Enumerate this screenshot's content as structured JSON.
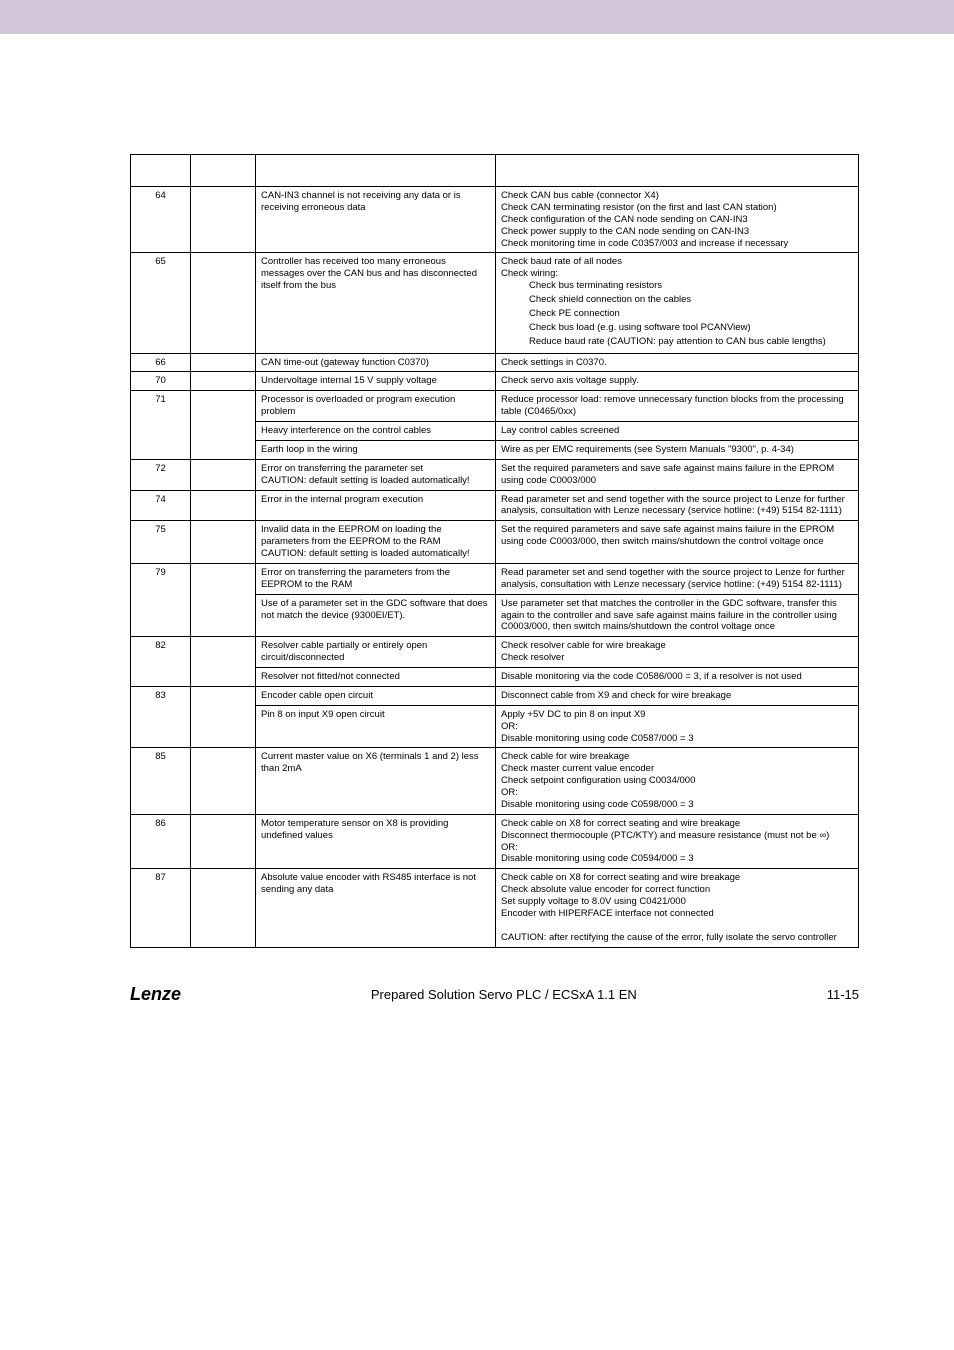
{
  "footer": {
    "brand": "Lenze",
    "center": "Prepared Solution Servo PLC / ECSxA 1.1 EN",
    "pageno": "11-15"
  },
  "rows": [
    {
      "no": "64",
      "cells": [
        {
          "cause": "CAN-IN3 channel is not receiving any data or is receiving erroneous data",
          "remedy": "Check CAN bus cable (connector X4)\nCheck CAN terminating resistor (on the first and last CAN station)\nCheck configuration of the CAN node sending on CAN-IN3\nCheck power supply to the CAN node sending on CAN-IN3\nCheck monitoring time in code C0357/003 and increase if necessary"
        }
      ]
    },
    {
      "no": "65",
      "cells": [
        {
          "cause": "Controller has received too many erroneous messages over the CAN bus and has disconnected itself from the bus",
          "remedy_pre": "Check baud rate of all nodes\nCheck wiring:",
          "remedy_list": [
            "Check bus terminating resistors",
            "Check shield connection on the cables",
            "Check PE connection",
            "Check bus load (e.g. using software tool PCANView)",
            "Reduce baud rate (CAUTION: pay attention to CAN bus cable lengths)"
          ]
        }
      ]
    },
    {
      "no": "66",
      "cells": [
        {
          "cause": "CAN time-out (gateway function C0370)",
          "remedy": "Check settings in C0370."
        }
      ]
    },
    {
      "no": "70",
      "cells": [
        {
          "cause": "Undervoltage internal 15 V supply voltage",
          "remedy": "Check servo axis voltage supply."
        }
      ]
    },
    {
      "no": "71",
      "cells": [
        {
          "cause": "Processor is overloaded or program execution problem",
          "remedy": "Reduce processor load: remove unnecessary function blocks from the processing table (C0465/0xx)"
        },
        {
          "cause": "Heavy interference on the control cables",
          "remedy": "Lay control cables screened"
        },
        {
          "cause": "Earth loop in the wiring",
          "remedy": "Wire as per EMC requirements (see System Manuals \"9300\", p. 4-34)"
        }
      ]
    },
    {
      "no": "72",
      "cells": [
        {
          "cause": "Error on transferring the parameter set\nCAUTION: default setting is loaded automatically!",
          "remedy": "Set the required parameters and save safe against mains failure in the EPROM using code C0003/000"
        }
      ]
    },
    {
      "no": "74",
      "cells": [
        {
          "cause": "Error in the internal program execution",
          "remedy": "Read parameter set and send together with the source project to Lenze for further analysis, consultation with Lenze necessary (service hotline: (+49) 5154 82-1111)"
        }
      ]
    },
    {
      "no": "75",
      "cells": [
        {
          "cause": "Invalid data in the EEPROM on loading the parameters from the EEPROM to the RAM\nCAUTION: default setting is loaded automatically!",
          "remedy": "Set the required parameters and save safe against mains failure in the EPROM using code C0003/000, then switch mains/shutdown the control voltage once"
        }
      ]
    },
    {
      "no": "79",
      "cells": [
        {
          "cause": "Error on transferring the parameters from the EEPROM to the RAM",
          "remedy": "Read parameter set and send together with the source project to Lenze for further analysis, consultation with Lenze necessary (service hotline: (+49) 5154 82-1111)"
        },
        {
          "cause": "Use of a parameter set in the GDC software that does not match the device (9300EI/ET).",
          "remedy": "Use parameter set that matches the controller in the GDC software, transfer this again to the controller and save safe against mains failure in the controller using C0003/000, then switch mains/shutdown the control voltage once"
        }
      ]
    },
    {
      "no": "82",
      "cells": [
        {
          "cause": "Resolver cable partially or entirely open circuit/disconnected",
          "remedy": "Check resolver cable for wire breakage\nCheck resolver"
        },
        {
          "cause": "Resolver not fitted/not connected",
          "remedy": "Disable monitoring via the code C0586/000 = 3, if a resolver is not used"
        }
      ]
    },
    {
      "no": "83",
      "cells": [
        {
          "cause": "Encoder cable open circuit",
          "remedy": "Disconnect cable from X9 and check for wire breakage"
        },
        {
          "cause": "Pin 8 on input X9 open circuit",
          "remedy": "Apply +5V DC to pin 8 on input X9\nOR:\nDisable monitoring using code C0587/000 = 3"
        }
      ]
    },
    {
      "no": "85",
      "cells": [
        {
          "cause": "Current master value on X6 (terminals 1 and 2) less than 2mA",
          "remedy": "Check cable for wire breakage\nCheck master current value encoder\nCheck setpoint configuration using C0034/000\nOR:\nDisable monitoring using code C0598/000 = 3"
        }
      ]
    },
    {
      "no": "86",
      "cells": [
        {
          "cause": "Motor temperature sensor on X8 is providing undefined values",
          "remedy": "Check cable on X8 for correct seating and wire breakage\nDisconnect thermocouple (PTC/KTY) and measure resistance (must not be ∞)\nOR:\nDisable monitoring using code C0594/000 = 3"
        }
      ]
    },
    {
      "no": "87",
      "cells": [
        {
          "cause": "Absolute value encoder with RS485 interface is not sending any data",
          "remedy": "Check cable on X8 for correct seating and wire breakage\nCheck absolute value encoder for correct function\nSet supply voltage to 8.0V using C0421/000\nEncoder with HIPERFACE interface not connected\n\nCAUTION: after rectifying the cause of the error, fully isolate the servo controller"
        }
      ]
    }
  ]
}
